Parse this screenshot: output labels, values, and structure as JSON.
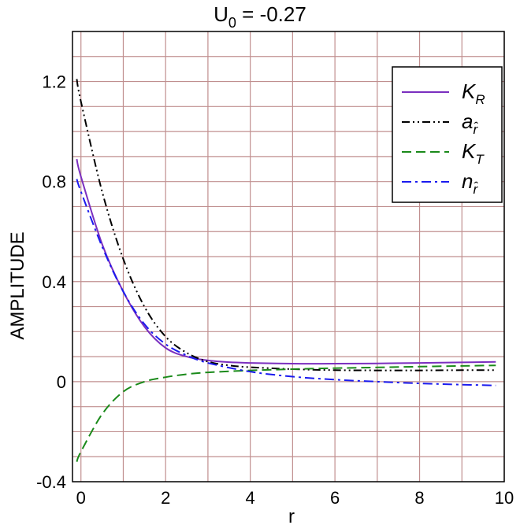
{
  "chart_data": {
    "type": "line",
    "title": {
      "main": "U",
      "sub": "0",
      "rest": " = -0.27"
    },
    "xlabel": "r",
    "ylabel": "AMPLITUDE",
    "xlim": [
      -0.2,
      10
    ],
    "ylim": [
      -0.4,
      1.4
    ],
    "xticks": [
      0,
      2,
      4,
      6,
      8,
      10
    ],
    "xtick_labels": [
      "0",
      "2",
      "4",
      "6",
      "8",
      "10"
    ],
    "yticks": [
      -0.4,
      0,
      0.4,
      0.8,
      1.2
    ],
    "ytick_labels": [
      "-0.4",
      "0",
      "0.4",
      "0.8",
      "1.2"
    ],
    "grid": true,
    "grid_color": "#c08f8f",
    "legend_position": "top-right",
    "series": [
      {
        "name": "K",
        "name_sub": "R",
        "color": "#7b2fbf",
        "dash": "solid",
        "x": [
          -0.1,
          0,
          0.5,
          1,
          1.5,
          2,
          2.5,
          3,
          3.5,
          4,
          5,
          6,
          7,
          8,
          9,
          9.8
        ],
        "y": [
          0.89,
          0.82,
          0.55,
          0.36,
          0.22,
          0.135,
          0.1,
          0.085,
          0.078,
          0.075,
          0.072,
          0.072,
          0.073,
          0.075,
          0.077,
          0.079
        ]
      },
      {
        "name": "a",
        "name_sub": "r̂",
        "color": "#000000",
        "dash": "dashdotdot",
        "x": [
          -0.1,
          0,
          0.5,
          1,
          1.5,
          2,
          2.5,
          3,
          3.5,
          4,
          5,
          6,
          7,
          8,
          9,
          9.8
        ],
        "y": [
          1.21,
          1.12,
          0.76,
          0.49,
          0.3,
          0.18,
          0.115,
          0.08,
          0.065,
          0.058,
          0.05,
          0.046,
          0.045,
          0.045,
          0.046,
          0.046
        ]
      },
      {
        "name": "K",
        "name_sub": "T",
        "color": "#1a8a1a",
        "dash": "dash",
        "x": [
          -0.1,
          0,
          0.5,
          1,
          1.5,
          2,
          2.5,
          3,
          4,
          5,
          6,
          7,
          8,
          9,
          9.8
        ],
        "y": [
          -0.32,
          -0.28,
          -0.13,
          -0.04,
          0.0,
          0.018,
          0.03,
          0.037,
          0.045,
          0.05,
          0.054,
          0.057,
          0.06,
          0.063,
          0.065
        ]
      },
      {
        "name": "n",
        "name_sub": "r̂",
        "color": "#1a1aef",
        "dash": "dashdot",
        "x": [
          -0.1,
          0,
          0.5,
          1,
          1.5,
          2,
          2.5,
          3,
          4,
          5,
          6,
          7,
          8,
          9,
          9.8
        ],
        "y": [
          0.81,
          0.76,
          0.54,
          0.36,
          0.23,
          0.15,
          0.105,
          0.075,
          0.04,
          0.02,
          0.008,
          0.0,
          -0.007,
          -0.012,
          -0.015
        ]
      }
    ]
  }
}
